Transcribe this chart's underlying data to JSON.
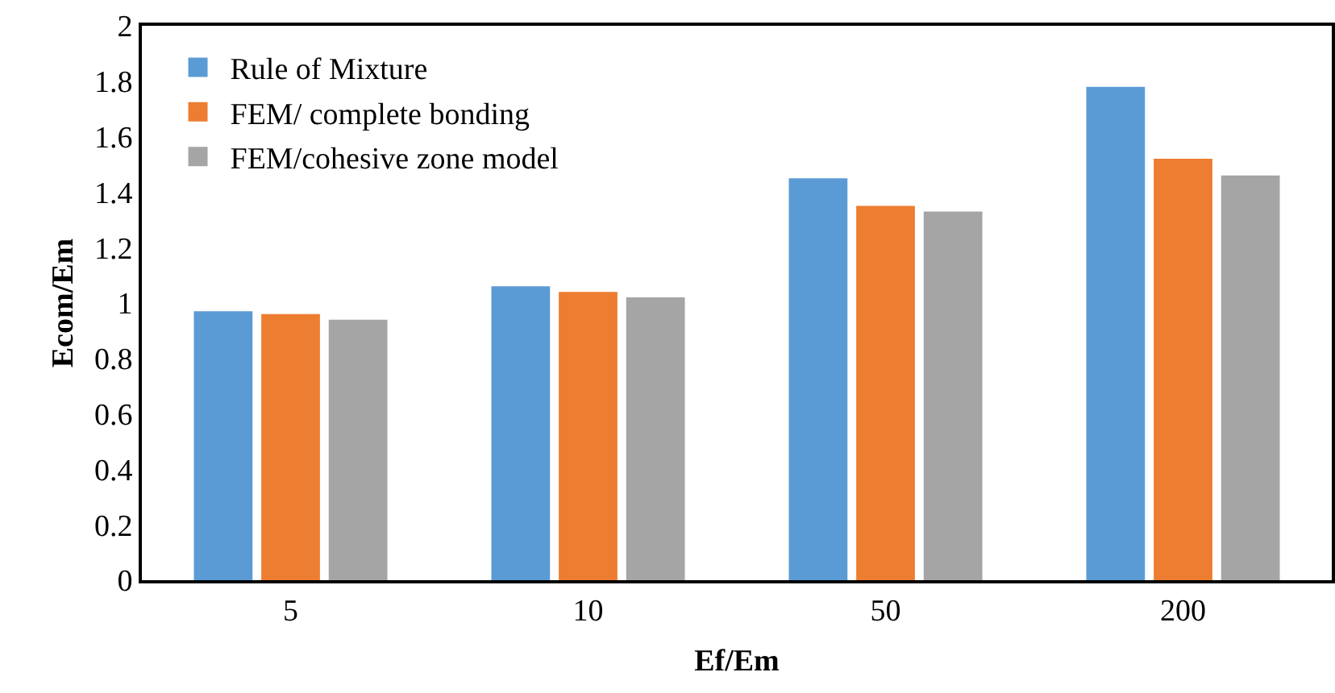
{
  "chart_data": {
    "type": "bar",
    "xlabel": "Ef/Em",
    "ylabel": "Ecom/Em",
    "categories": [
      "5",
      "10",
      "50",
      "200"
    ],
    "series": [
      {
        "name": "Rule of Mixture",
        "color": "#5b9bd5",
        "values": [
          0.97,
          1.06,
          1.45,
          1.78
        ]
      },
      {
        "name": "FEM/ complete bonding",
        "color": "#ed7d31",
        "values": [
          0.96,
          1.04,
          1.35,
          1.52
        ]
      },
      {
        "name": "FEM/cohesive zone model",
        "color": "#a5a5a5",
        "values": [
          0.94,
          1.02,
          1.33,
          1.46
        ]
      }
    ],
    "ylim": [
      0,
      2
    ],
    "yticks": [
      0,
      0.2,
      0.4,
      0.6,
      0.8,
      1,
      1.2,
      1.4,
      1.6,
      1.8,
      2
    ],
    "grid": false,
    "legend": "top left"
  }
}
